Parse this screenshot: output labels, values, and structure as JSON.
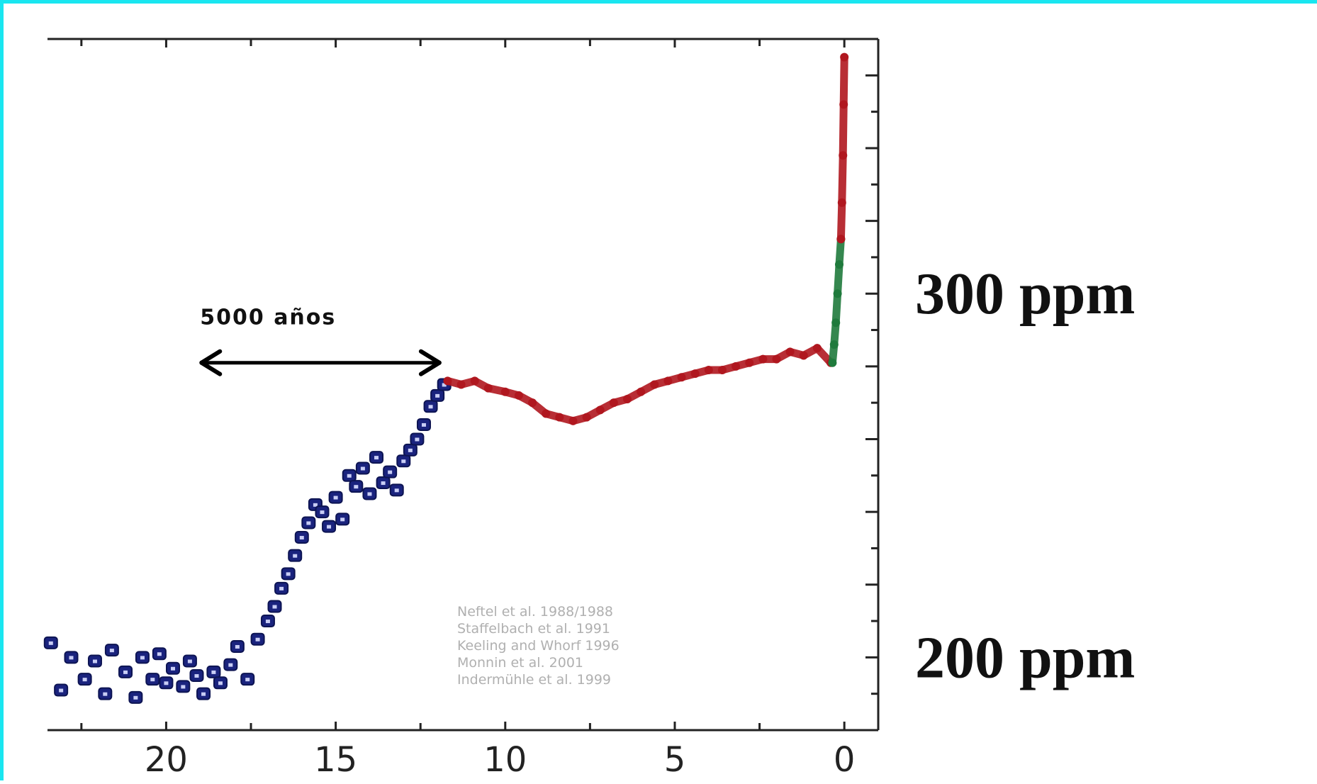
{
  "chart_data": {
    "type": "scatter",
    "x_axis": {
      "reversed": true,
      "range": [
        23.5,
        -1
      ],
      "ticks": [
        20,
        15,
        10,
        5,
        0
      ]
    },
    "y_axis": {
      "range": [
        180,
        370
      ],
      "labels": [
        "300 ppm",
        "200 ppm"
      ],
      "label_values": [
        300,
        200
      ]
    },
    "grid": false,
    "annotation": {
      "text": "5000 años",
      "from": 19,
      "to": 11.9,
      "y": 281
    },
    "legend": {
      "placement": "bottom-right",
      "entries": [
        "Neftel et al. 1988/1988",
        "Staffelbach et al. 1991",
        "Keeling and Whorf 1996",
        "Monnin et al. 2001",
        "Indermühle et al. 1999"
      ]
    },
    "colors": {
      "glacial": "#1a237e",
      "holocene": "#b0171f",
      "instrumental": "#1f7a3c",
      "border": "#19e6f0"
    },
    "series": [
      {
        "style": "markers",
        "color": "#1a237e",
        "x": [
          23.4,
          23.1,
          22.8,
          22.4,
          22.1,
          21.8,
          21.6,
          21.2,
          20.9,
          20.7,
          20.4,
          20.2,
          20.0,
          19.8,
          19.5,
          19.3,
          19.1,
          18.9,
          18.6,
          18.4,
          18.1,
          17.9,
          17.6,
          17.3,
          17.0,
          16.8,
          16.6,
          16.4,
          16.2,
          16.0,
          15.8,
          15.6,
          15.4,
          15.2,
          15.0,
          14.8,
          14.6,
          14.4,
          14.2,
          14.0,
          13.8,
          13.6,
          13.4,
          13.2,
          13.0,
          12.8,
          12.6,
          12.4,
          12.2,
          12.0,
          11.8
        ],
        "y": [
          204,
          191,
          200,
          194,
          199,
          190,
          202,
          196,
          189,
          200,
          194,
          201,
          193,
          197,
          192,
          199,
          195,
          190,
          196,
          193,
          198,
          203,
          194,
          205,
          210,
          214,
          219,
          223,
          228,
          233,
          237,
          242,
          240,
          236,
          244,
          238,
          250,
          247,
          252,
          245,
          255,
          248,
          251,
          246,
          254,
          257,
          260,
          264,
          269,
          272,
          275
        ]
      },
      {
        "style": "line",
        "color": "#b0171f",
        "x": [
          11.7,
          11.3,
          10.9,
          10.5,
          10.0,
          9.6,
          9.2,
          8.8,
          8.4,
          8.0,
          7.6,
          7.2,
          6.8,
          6.4,
          6.0,
          5.6,
          5.2,
          4.8,
          4.4,
          4.0,
          3.6,
          3.2,
          2.8,
          2.4,
          2.0,
          1.6,
          1.2,
          0.8,
          0.4
        ],
        "y": [
          276,
          275,
          276,
          274,
          273,
          272,
          270,
          267,
          266,
          265,
          266,
          268,
          270,
          271,
          273,
          275,
          276,
          277,
          278,
          279,
          279,
          280,
          281,
          282,
          282,
          284,
          283,
          285,
          281
        ]
      },
      {
        "style": "line",
        "color": "#1f7a3c",
        "x": [
          0.35,
          0.3,
          0.25,
          0.2,
          0.15,
          0.1
        ],
        "y": [
          281,
          286,
          292,
          300,
          308,
          315
        ]
      },
      {
        "style": "line",
        "color": "#b0171f",
        "x": [
          0.1,
          0.07,
          0.04,
          0.02,
          0.0
        ],
        "y": [
          315,
          325,
          338,
          352,
          365
        ]
      }
    ]
  }
}
